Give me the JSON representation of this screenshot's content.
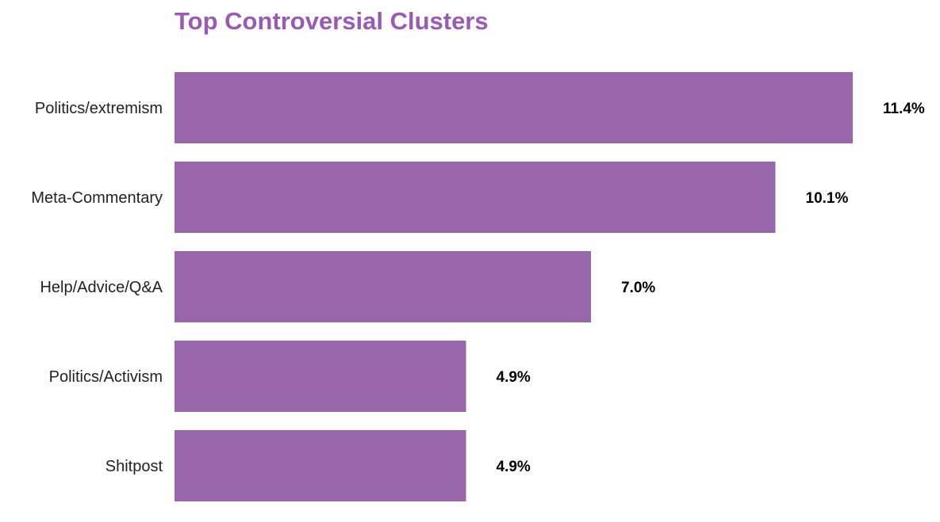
{
  "chart_data": {
    "type": "bar",
    "orientation": "horizontal",
    "title": "Top Controversial Clusters",
    "categories": [
      "Politics/extremism",
      "Meta-Commentary",
      "Help/Advice/Q&A",
      "Politics/Activism",
      "Shitpost"
    ],
    "values": [
      11.4,
      10.1,
      7.0,
      4.9,
      4.9
    ],
    "data_labels": [
      "11.4%",
      "10.1%",
      "7.0%",
      "4.9%",
      "4.9%"
    ],
    "xlabel": "",
    "ylabel": "",
    "xlim": [
      0,
      12.5
    ],
    "grid": false,
    "bar_color": "#9767a9",
    "title_color": "#9b59b6"
  }
}
